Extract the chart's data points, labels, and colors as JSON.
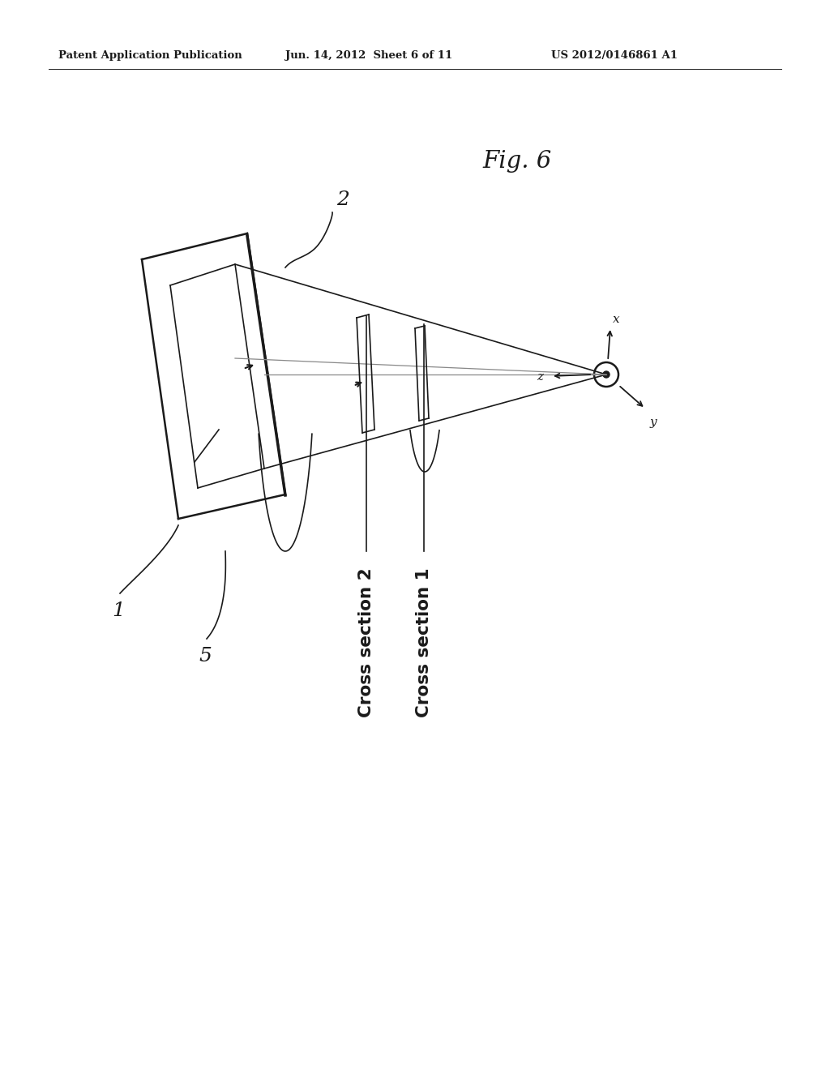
{
  "bg_color": "#ffffff",
  "header_left": "Patent Application Publication",
  "header_mid": "Jun. 14, 2012  Sheet 6 of 11",
  "header_right": "US 2012/0146861 A1",
  "fig_label": "Fig. 6",
  "label_1": "1",
  "label_2": "2",
  "label_5": "5",
  "cs1": "Cross section 1",
  "cs2": "Cross section 2",
  "axis_x": "x",
  "axis_y": "y",
  "axis_z": "z",
  "col": "#1a1a1a",
  "col_gray": "#888888",
  "col_lgray": "#aaaaaa"
}
